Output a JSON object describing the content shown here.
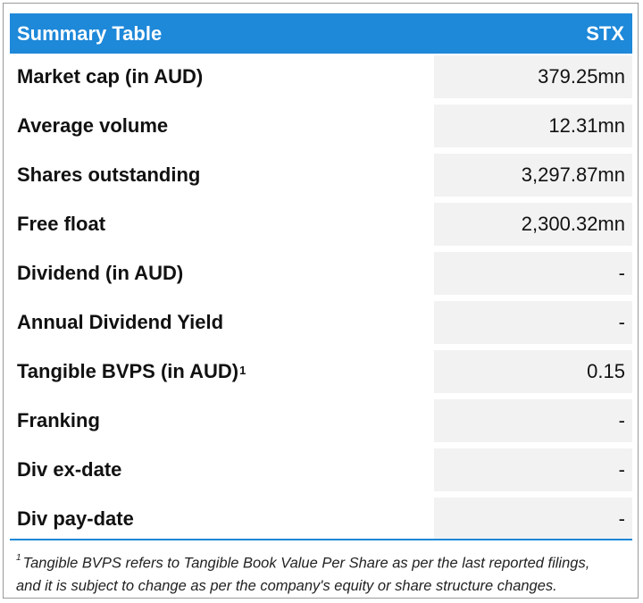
{
  "header": {
    "title": "Summary Table",
    "ticker": "STX"
  },
  "rows": [
    {
      "label": "Market cap (in AUD)",
      "value": "379.25mn"
    },
    {
      "label": "Average volume",
      "value": "12.31mn"
    },
    {
      "label": "Shares outstanding",
      "value": "3,297.87mn"
    },
    {
      "label": "Free float",
      "value": "2,300.32mn"
    },
    {
      "label": "Dividend (in AUD)",
      "value": "-"
    },
    {
      "label": "Annual Dividend Yield",
      "value": "-"
    },
    {
      "label": "Tangible BVPS (in AUD)",
      "sup": "1",
      "value": "0.15"
    },
    {
      "label": "Franking",
      "value": "-"
    },
    {
      "label": "Div ex-date",
      "value": "-"
    },
    {
      "label": "Div pay-date",
      "value": "-"
    }
  ],
  "footnote": {
    "marker": "1",
    "line1": "Tangible BVPS refers to Tangible Book Value Per Share as per the last reported filings,",
    "line2": "and it is subject to change as per the company's equity or share structure changes."
  },
  "colors": {
    "header_bg": "#1E88D9",
    "value_bg": "#f2f2f2"
  }
}
